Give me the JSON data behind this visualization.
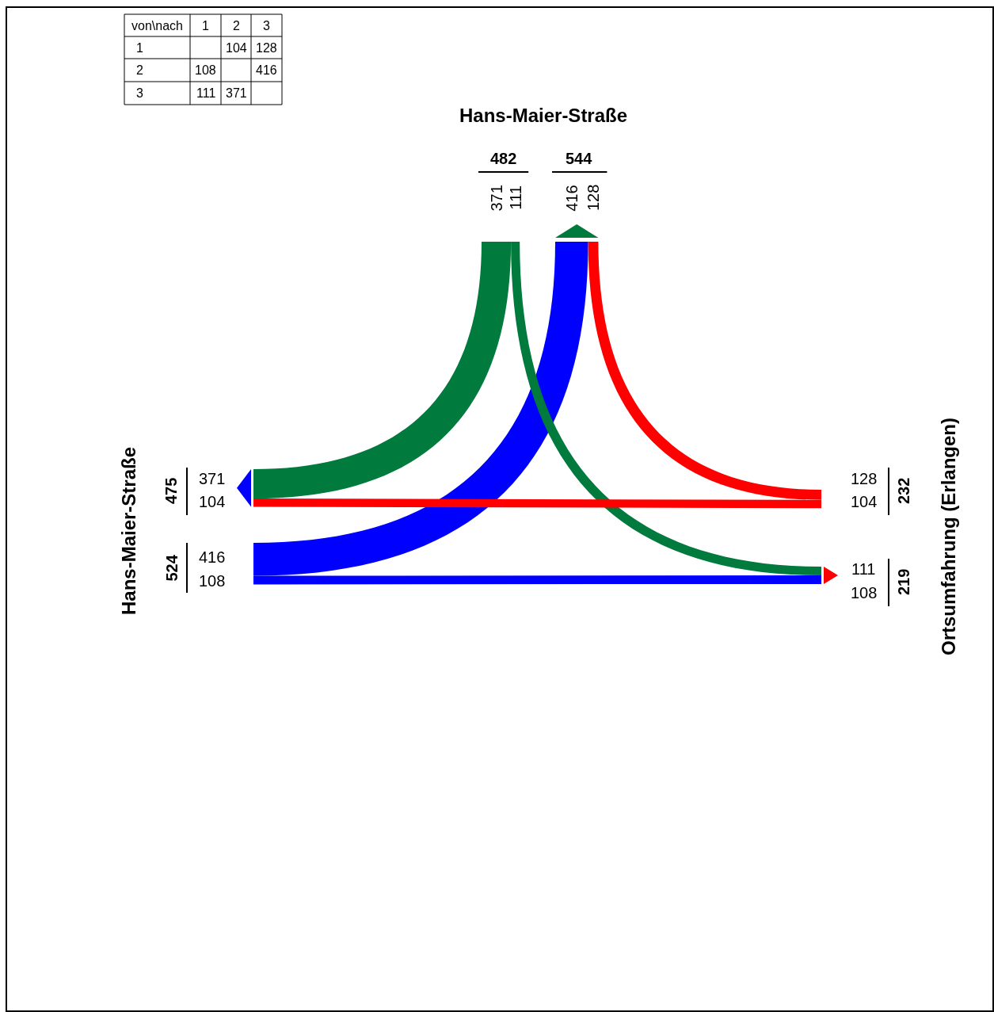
{
  "chart_data": [
    {
      "type": "heatmap",
      "data_labels": true,
      "ylabel": "von\\nach",
      "categories": [
        "1",
        "2",
        "3"
      ],
      "y_categories": [
        "1",
        "2",
        "3"
      ],
      "cells": [
        [
          null,
          104,
          128
        ],
        [
          108,
          null,
          416
        ],
        [
          111,
          371,
          null
        ]
      ]
    },
    {
      "type": "other",
      "data_labels": true,
      "categories": [
        "Ortsumfahrung (Erlangen)",
        "Hans-Maier-Straße",
        "Hans-Maier-Straße"
      ],
      "series": [
        {
          "color": "#ff0000",
          "values": [
            null,
            104,
            128
          ]
        },
        {
          "color": "#0000ff",
          "values": [
            108,
            null,
            416
          ]
        },
        {
          "color": "#007a3d",
          "values": [
            111,
            371,
            null
          ]
        }
      ],
      "annotations": [
        "371",
        "111",
        "416",
        "108",
        "128",
        "104"
      ],
      "totals": [
        [
          "232",
          "219"
        ],
        [
          "524",
          "475"
        ],
        [
          "482",
          "544"
        ]
      ]
    }
  ]
}
